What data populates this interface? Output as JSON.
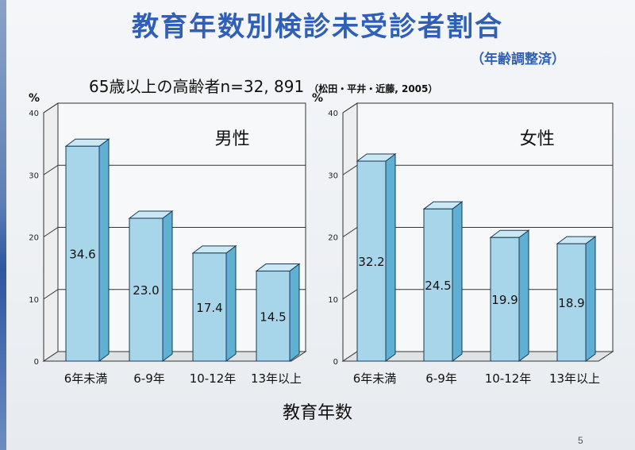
{
  "slide": {
    "title": "教育年数別検診未受診者割合",
    "subtitle": "（年齢調整済）",
    "caption": "65歳以上の高齢者n=32, 891",
    "reference": "（松田・平井・近藤, 2005）",
    "page_number": "5"
  },
  "chart_data": [
    {
      "type": "bar",
      "title": "男性",
      "categories": [
        "6年未満",
        "6-9年",
        "10-12年",
        "13年以上"
      ],
      "values": [
        34.6,
        23.0,
        17.4,
        14.5
      ],
      "value_labels": [
        "34.6",
        "23.0",
        "17.4",
        "14.5"
      ],
      "ylabel": "%",
      "ylim": [
        0,
        40
      ],
      "yticks": [
        "0",
        "10",
        "20",
        "30",
        "40"
      ],
      "grid": true,
      "bar_color": "#a7d6ea"
    },
    {
      "type": "bar",
      "title": "女性",
      "categories": [
        "6年未満",
        "6-9年",
        "10-12年",
        "13年以上"
      ],
      "values": [
        32.2,
        24.5,
        19.9,
        18.9
      ],
      "value_labels": [
        "32.2",
        "24.5",
        "19.9",
        "18.9"
      ],
      "ylabel": "%",
      "ylim": [
        0,
        40
      ],
      "yticks": [
        "0",
        "10",
        "20",
        "30",
        "40"
      ],
      "grid": true,
      "bar_color": "#a7d6ea"
    }
  ],
  "xlabel": "教育年数"
}
